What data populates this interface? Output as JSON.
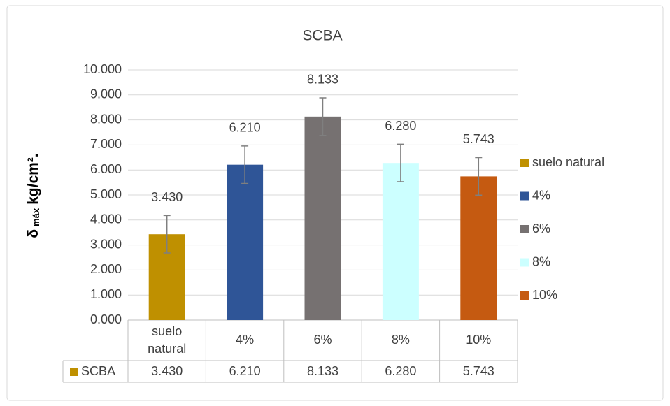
{
  "chart_data": {
    "type": "bar",
    "title": "SCBA",
    "ylabel": {
      "symbol": "δ",
      "subscript": "máx",
      "unit": "kg/cm²."
    },
    "categories": [
      "suelo natural",
      "4%",
      "6%",
      "8%",
      "10%"
    ],
    "series": [
      {
        "name": "SCBA",
        "color": "#bf9000",
        "colors": [
          "#bf9000",
          "#2f5597",
          "#767171",
          "#ccffff",
          "#c55a11"
        ],
        "values": [
          3.43,
          6.21,
          8.133,
          6.28,
          5.743
        ],
        "value_labels": [
          "3.430",
          "6.210",
          "8.133",
          "6.280",
          "5.743"
        ],
        "errors": [
          0.75,
          0.75,
          0.75,
          0.75,
          0.75
        ]
      }
    ],
    "ylim": [
      0,
      10
    ],
    "yticks": [
      {
        "value": 0,
        "label": "0.000"
      },
      {
        "value": 1,
        "label": "1.000"
      },
      {
        "value": 2,
        "label": "2.000"
      },
      {
        "value": 3,
        "label": "3.000"
      },
      {
        "value": 4,
        "label": "4.000"
      },
      {
        "value": 5,
        "label": "5.000"
      },
      {
        "value": 6,
        "label": "6.000"
      },
      {
        "value": 7,
        "label": "7.000"
      },
      {
        "value": 8,
        "label": "8.000"
      },
      {
        "value": 9,
        "label": "9.000"
      },
      {
        "value": 10,
        "label": "10.000"
      }
    ],
    "grid": true,
    "legend": "right",
    "data_table": true
  }
}
